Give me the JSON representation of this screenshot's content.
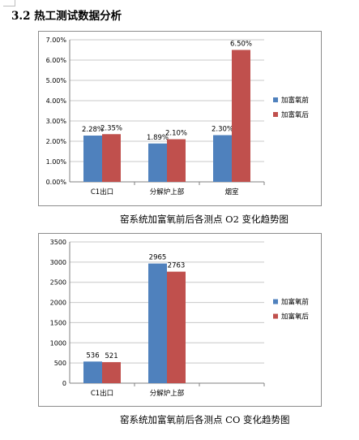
{
  "heading": "3.2 热工测试数据分析",
  "colors": {
    "before": "#4f81bd",
    "after": "#c0504d"
  },
  "chart_data": [
    {
      "type": "bar",
      "caption": "窑系统加富氧前后各测点 O2 变化趋势图",
      "categories": [
        "C1出口",
        "分解炉上部",
        "烟室"
      ],
      "series": [
        {
          "name": "加富氧前",
          "values": [
            2.28,
            1.89,
            2.3
          ],
          "labels": [
            "2.28%",
            "1.89%",
            "2.30%"
          ]
        },
        {
          "name": "加富氧后",
          "values": [
            2.35,
            2.1,
            6.5
          ],
          "labels": [
            "2.35%",
            "2.10%",
            "6.50%"
          ]
        }
      ],
      "ylim": [
        0,
        7
      ],
      "y_ticks": [
        "0.00%",
        "1.00%",
        "2.00%",
        "3.00%",
        "4.00%",
        "5.00%",
        "6.00%",
        "7.00%"
      ],
      "grid": true,
      "legend": "right"
    },
    {
      "type": "bar",
      "caption": "窑系统加富氧前后各测点 CO 变化趋势图",
      "categories": [
        "C1出口",
        "分解炉上部",
        ""
      ],
      "series": [
        {
          "name": "加富氧前",
          "values": [
            536,
            2965,
            null
          ],
          "labels": [
            "536",
            "2965",
            ""
          ]
        },
        {
          "name": "加富氧后",
          "values": [
            521,
            2763,
            null
          ],
          "labels": [
            "521",
            "2763",
            ""
          ]
        }
      ],
      "ylim": [
        0,
        3500
      ],
      "y_ticks": [
        "0",
        "500",
        "1000",
        "1500",
        "2000",
        "2500",
        "3000",
        "3500"
      ],
      "grid": true,
      "legend": "right"
    }
  ]
}
